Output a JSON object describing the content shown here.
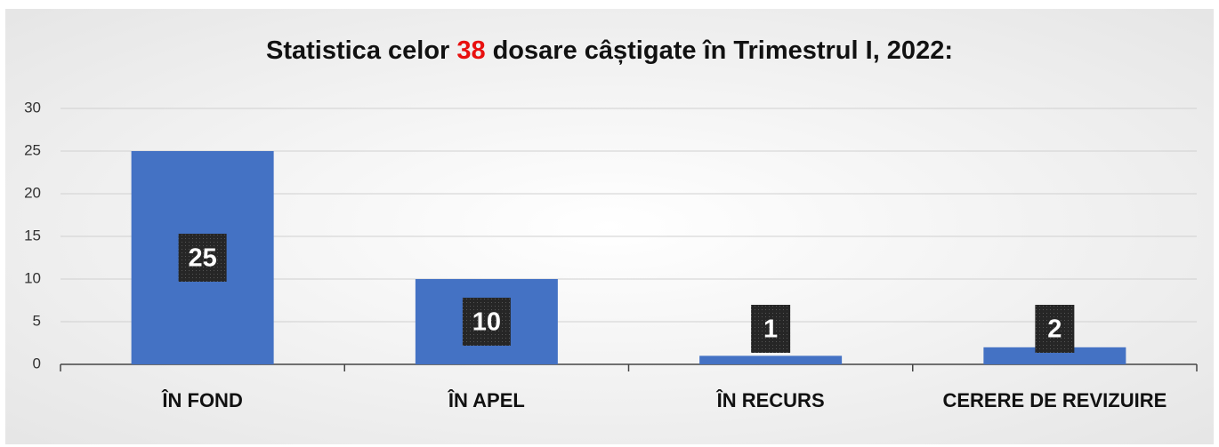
{
  "chart_data": {
    "type": "bar",
    "title_parts": [
      "Statistica celor",
      "38",
      "dosare câștigate în Trimestrul I, 2022:"
    ],
    "title_highlight_color": "#e8100f",
    "categories": [
      "ÎN FOND",
      "ÎN APEL",
      "ÎN RECURS",
      "CERERE DE REVIZUIRE"
    ],
    "values": [
      25,
      10,
      1,
      2
    ],
    "color": "#4472c4",
    "ylim": [
      0,
      30
    ],
    "yticks": [
      0,
      5,
      10,
      15,
      20,
      25,
      30
    ],
    "grid": true
  }
}
